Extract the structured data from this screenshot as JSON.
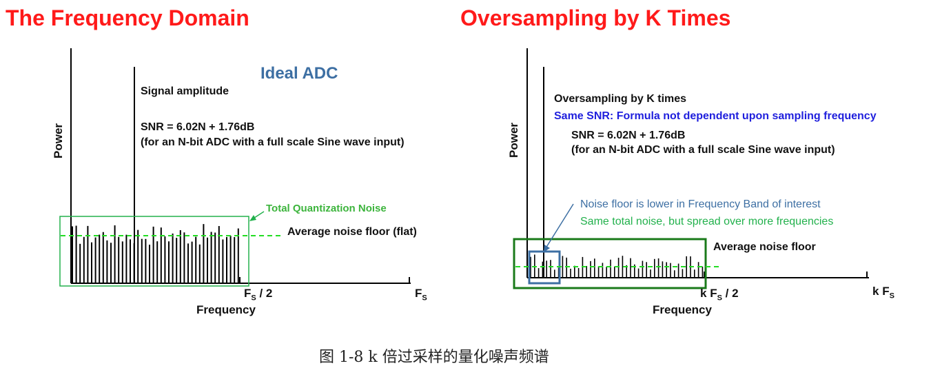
{
  "left": {
    "title": "The Frequency Domain",
    "ideal_label": "Ideal ADC",
    "signal_label": "Signal amplitude",
    "snr_formula": "SNR = 6.02N + 1.76dB",
    "snr_note": "(for an N-bit ADC with a full scale Sine wave input)",
    "tqn_label": "Total Quantization Noise",
    "avg_noise_label": "Average noise floor (flat)",
    "y_axis": "Power",
    "x_axis": "Frequency",
    "tick_half": {
      "main": "F",
      "sub": "S",
      "suffix": " / 2"
    },
    "tick_full": {
      "main": "F",
      "sub": "S"
    }
  },
  "right": {
    "title": "Oversampling by K Times",
    "oversampling_label": "Oversampling by K times",
    "same_snr_label": "Same SNR: Formula not dependent upon sampling frequency",
    "snr_formula": "SNR = 6.02N + 1.76dB",
    "snr_note": "(for an N-bit ADC with a full scale Sine wave input)",
    "noise_lower_note": "Noise floor is lower in Frequency Band of interest",
    "same_total_note": "Same total noise, but spread over more frequencies",
    "avg_noise_label": "Average  noise  floor",
    "y_axis": "Power",
    "x_axis": "Frequency",
    "tick_half": {
      "prefix": "k ",
      "main": "F",
      "sub": "S",
      "suffix": " / 2"
    },
    "tick_full": {
      "prefix": "k ",
      "main": "F",
      "sub": "S"
    }
  },
  "caption": "图 1-8   k 倍过采样的量化噪声频谱",
  "colors": {
    "title_red": "#ff1a1a",
    "noise_green": "#22b14c",
    "box_dark_green": "#1a7a1a",
    "blue_box": "#3d6fa3",
    "same_snr_blue": "#1f1fdd"
  }
}
